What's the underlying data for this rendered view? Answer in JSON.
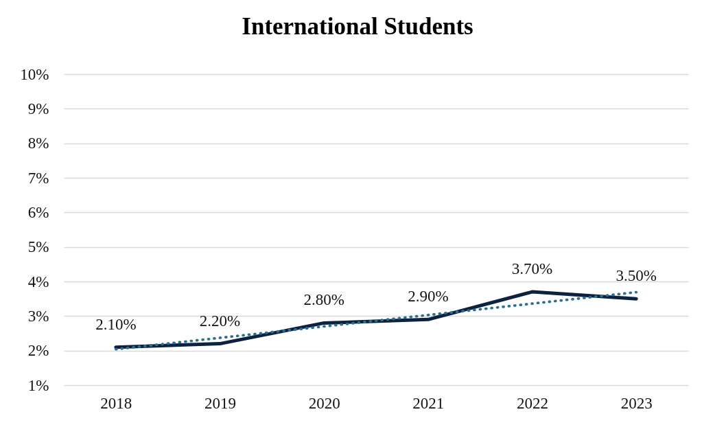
{
  "chart_data": {
    "type": "line",
    "title": "International Students",
    "x": [
      2018,
      2019,
      2020,
      2021,
      2022,
      2023
    ],
    "xlim": [
      2017.5,
      2023.5
    ],
    "xticks": [
      2018,
      2019,
      2020,
      2021,
      2022,
      2023
    ],
    "series": [
      {
        "color": "#0d2240",
        "line_style": "solid",
        "values": [
          2.1,
          2.2,
          2.8,
          2.9,
          3.7,
          3.5
        ],
        "value_labels": [
          "2.10%",
          "2.20%",
          "2.80%",
          "2.90%",
          "3.70%",
          "3.50%"
        ]
      },
      {
        "type": "line",
        "color": "#2a7090",
        "line_style": "dotted",
        "x": [
          2018,
          2023
        ],
        "values": [
          2.04,
          3.69
        ]
      }
    ],
    "ylim": [
      1,
      10
    ],
    "yticks": [
      {
        "value": 1,
        "label": "1%"
      },
      {
        "value": 2,
        "label": "2%"
      },
      {
        "value": 3,
        "label": "3%"
      },
      {
        "value": 4,
        "label": "4%"
      },
      {
        "value": 5,
        "label": "5%"
      },
      {
        "value": 6,
        "label": "6%"
      },
      {
        "value": 7,
        "label": "7%"
      },
      {
        "value": 8,
        "label": "8%"
      },
      {
        "value": 9,
        "label": "9%"
      },
      {
        "value": 10,
        "label": "10%"
      }
    ],
    "grid": "y"
  }
}
